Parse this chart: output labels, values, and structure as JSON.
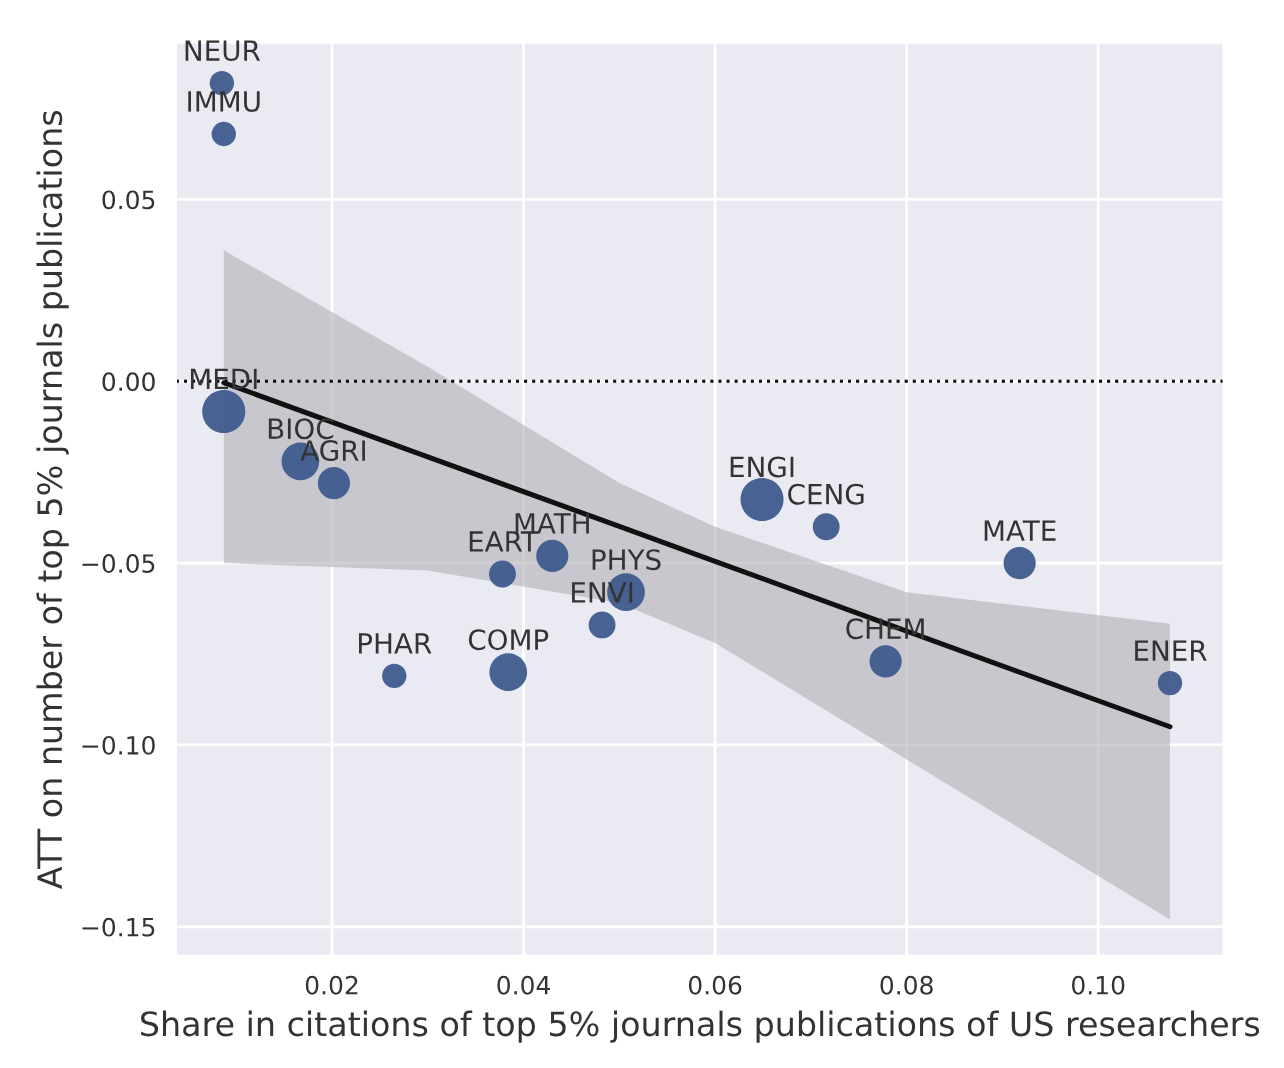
{
  "chart_data": {
    "type": "bubble",
    "xlabel": "Share in citations of top 5% journals publications of US researchers",
    "ylabel": "ATT on number of top 5% journals publications",
    "xlim": [
      0.0037,
      0.1131
    ],
    "xticks": [
      {
        "value": 0.02,
        "label": "0.02"
      },
      {
        "value": 0.04,
        "label": "0.04"
      },
      {
        "value": 0.06,
        "label": "0.06"
      },
      {
        "value": 0.08,
        "label": "0.08"
      },
      {
        "value": 0.1,
        "label": "0.10"
      }
    ],
    "ylim": [
      -0.158,
      0.0931
    ],
    "yticks": [
      {
        "value": -0.15,
        "label": "−0.15"
      },
      {
        "value": -0.1,
        "label": "−0.10"
      },
      {
        "value": -0.05,
        "label": "−0.05"
      },
      {
        "value": 0,
        "label": "0.00"
      },
      {
        "value": 0.05,
        "label": "0.05"
      }
    ],
    "grid": true,
    "ref_lines": [
      {
        "axis": "y",
        "value": 0,
        "color": "#000000",
        "line_style": "dotted"
      }
    ],
    "series": [
      {
        "color": "#3f5b8e",
        "x": [
          0.0085,
          0.0087,
          0.0087,
          0.0167,
          0.0202,
          0.0378,
          0.043,
          0.0507,
          0.0482,
          0.0265,
          0.0384,
          0.0649,
          0.0716,
          0.0918,
          0.0778,
          0.1075
        ],
        "values": [
          0.082,
          0.068,
          -0.0083,
          -0.022,
          -0.028,
          -0.053,
          -0.048,
          -0.058,
          -0.067,
          -0.081,
          -0.08,
          -0.0325,
          -0.04,
          -0.05,
          -0.077,
          -0.083
        ],
        "sizes": [
          0.32,
          0.32,
          1,
          0.77,
          0.56,
          0.39,
          0.56,
          0.77,
          0.39,
          0.32,
          0.77,
          1,
          0.39,
          0.56,
          0.56,
          0.32
        ]
      },
      {
        "type": "line",
        "color": "#111111",
        "x": [
          0.0087,
          0.03,
          0.05,
          0.06,
          0.08,
          0.1075
        ],
        "values": [
          -0.0004,
          -0.0208,
          -0.0399,
          -0.0495,
          -0.0687,
          -0.095
        ],
        "lower": [
          -0.05,
          -0.052,
          -0.061,
          -0.072,
          -0.104,
          -0.148
        ],
        "upper": [
          0.036,
          0.004,
          -0.028,
          -0.04,
          -0.058,
          -0.0667
        ]
      }
    ],
    "annotations": [
      {
        "text": "NEUR",
        "x": 0.0085,
        "y": 0.082
      },
      {
        "text": "IMMU",
        "x": 0.0087,
        "y": 0.068
      },
      {
        "text": "MEDI",
        "x": 0.0087,
        "y": -0.0083
      },
      {
        "text": "BIOC",
        "x": 0.0167,
        "y": -0.022
      },
      {
        "text": "AGRI",
        "x": 0.0202,
        "y": -0.028
      },
      {
        "text": "EART",
        "x": 0.0378,
        "y": -0.053
      },
      {
        "text": "MATH",
        "x": 0.043,
        "y": -0.048
      },
      {
        "text": "PHYS",
        "x": 0.0507,
        "y": -0.058
      },
      {
        "text": "ENVI",
        "x": 0.0482,
        "y": -0.067
      },
      {
        "text": "PHAR",
        "x": 0.0265,
        "y": -0.081
      },
      {
        "text": "COMP",
        "x": 0.0384,
        "y": -0.08
      },
      {
        "text": "ENGI",
        "x": 0.0649,
        "y": -0.0325
      },
      {
        "text": "CENG",
        "x": 0.0716,
        "y": -0.04
      },
      {
        "text": "MATE",
        "x": 0.0918,
        "y": -0.05
      },
      {
        "text": "CHEM",
        "x": 0.0778,
        "y": -0.077
      },
      {
        "text": "ENER",
        "x": 0.1075,
        "y": -0.083
      }
    ]
  }
}
